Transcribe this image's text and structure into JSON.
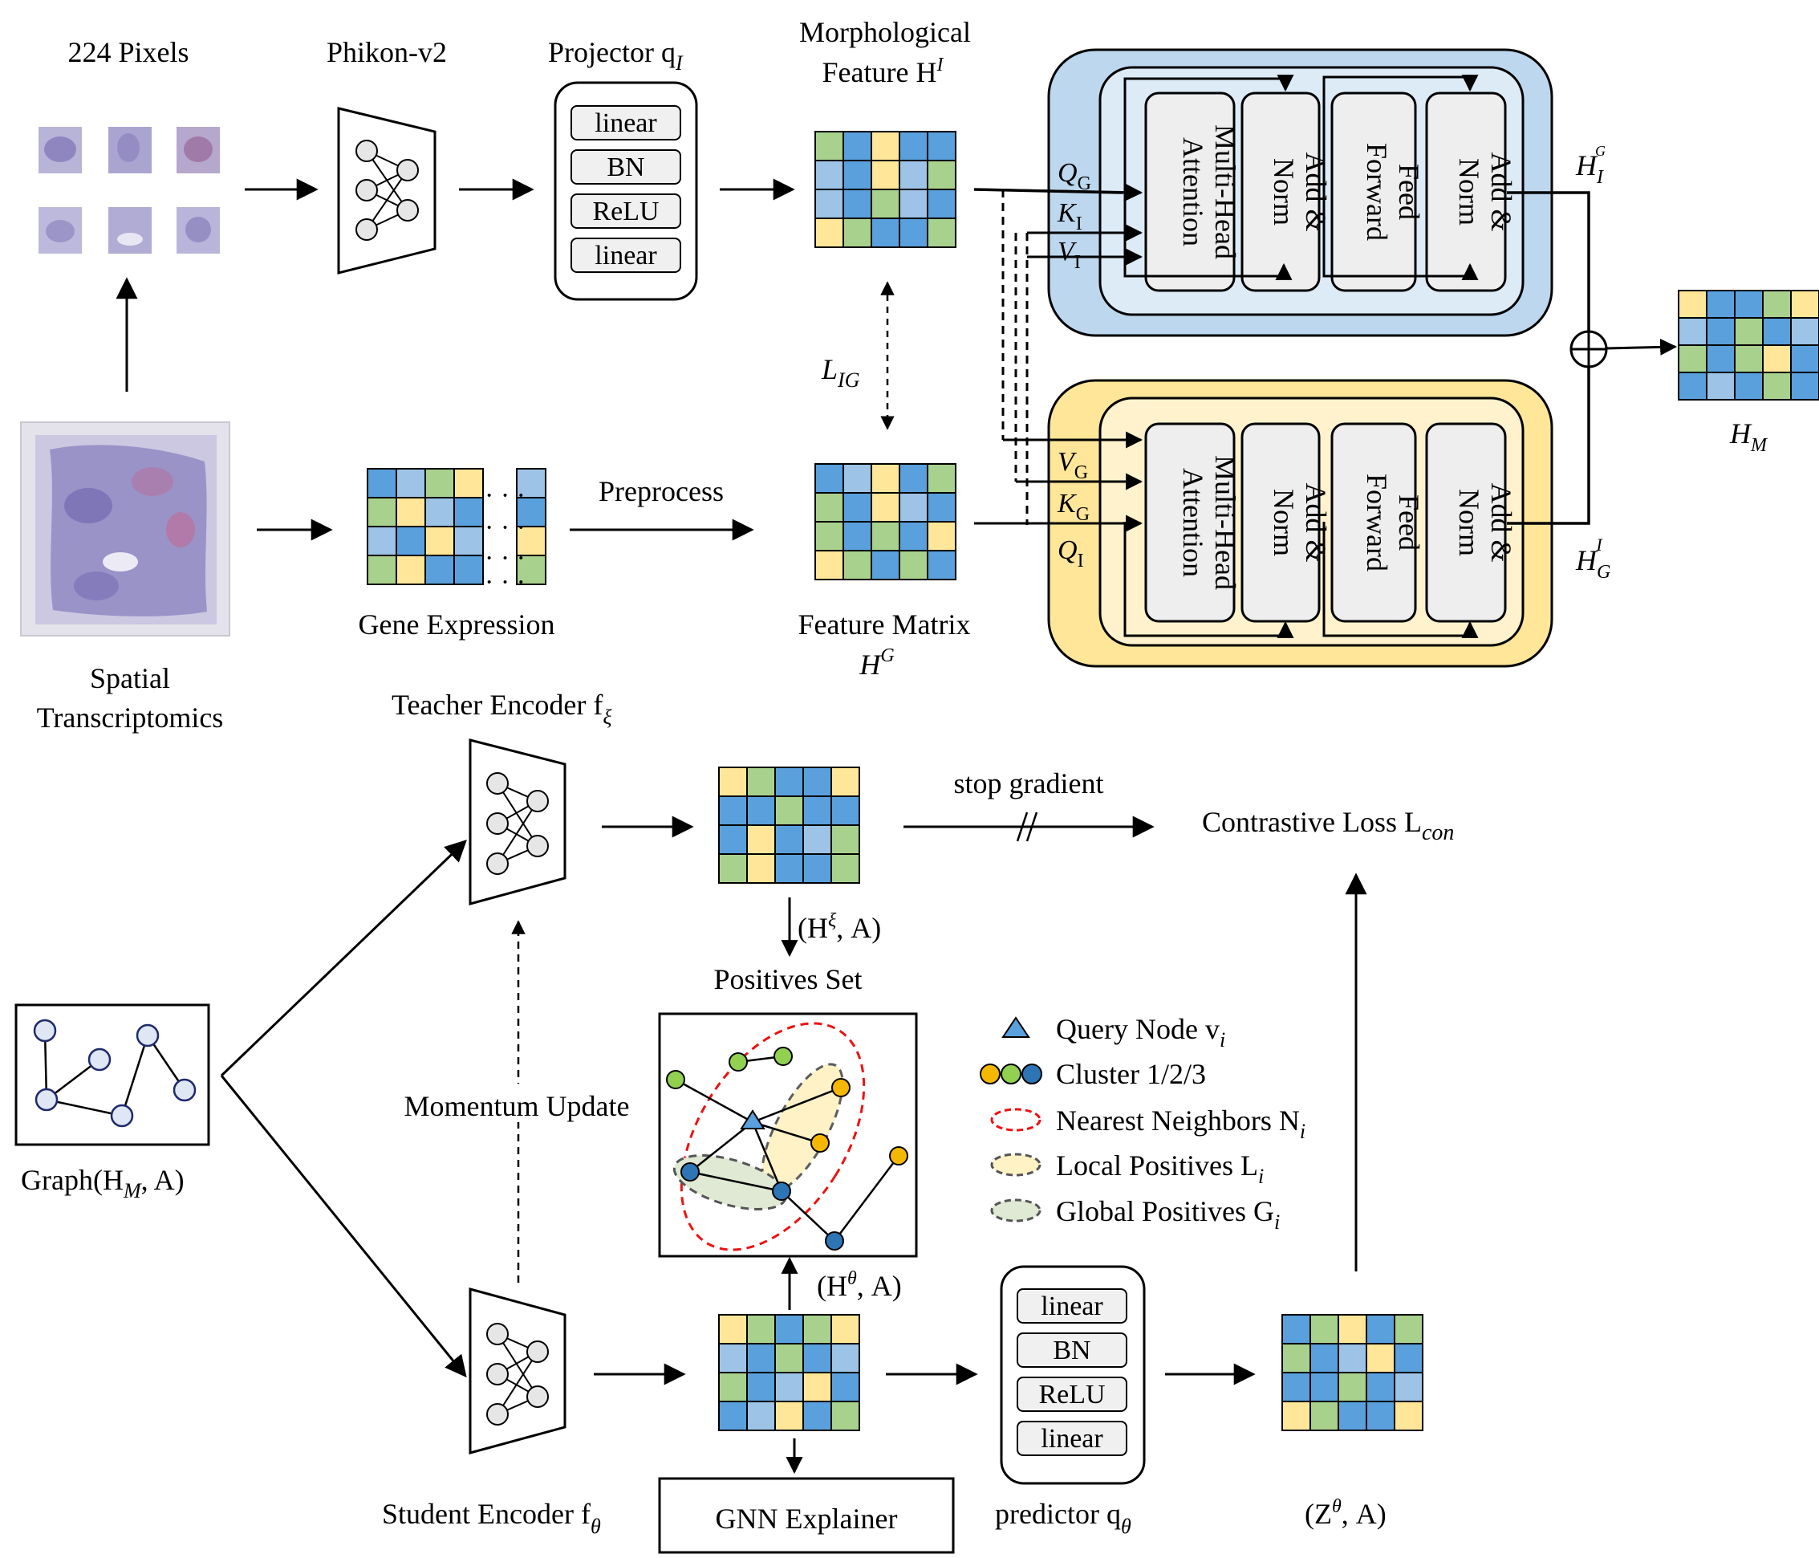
{
  "top": {
    "pixels_label": "224 Pixels",
    "phikon_label": "Phikon-v2",
    "projector_label": "Projector q",
    "projector_sub": "I",
    "projector_layers": [
      "linear",
      "BN",
      "ReLU",
      "linear"
    ],
    "morph_label_1": "Morphological",
    "morph_label_2": "Feature H",
    "morph_sup": "I",
    "lig_main": "L",
    "lig_sub": "IG",
    "st_label_1": "Spatial",
    "st_label_2": "Transcriptomics",
    "gene_label": "Gene Expression",
    "preprocess_label": "Preprocess",
    "feature_matrix_label": "Feature Matrix",
    "hg_main": "H",
    "hg_sup": "G"
  },
  "attention_blue": {
    "inputs": [
      {
        "main": "Q",
        "sub": "G"
      },
      {
        "main": "K",
        "sub": "I"
      },
      {
        "main": "V",
        "sub": "I"
      }
    ],
    "blocks": [
      "Multi-Head Attention",
      "Add & Norm",
      "Feed Forward",
      "Add & Norm"
    ],
    "output_main": "H",
    "output_sub": "I",
    "output_sup": "G",
    "fill": "#bdd7ee"
  },
  "attention_yellow": {
    "inputs": [
      {
        "main": "V",
        "sub": "G"
      },
      {
        "main": "K",
        "sub": "G"
      },
      {
        "main": "Q",
        "sub": "I"
      }
    ],
    "blocks": [
      "Multi-Head Attention",
      "Add & Norm",
      "Feed Forward",
      "Add & Norm"
    ],
    "output_main": "H",
    "output_sub": "G",
    "output_sup": "I",
    "fill": "#ffe699"
  },
  "fusion": {
    "symbol": "⊕",
    "hm_main": "H",
    "hm_sub": "M"
  },
  "bottom": {
    "teacher_label": "Teacher Encoder f",
    "teacher_sub": "ξ",
    "stop_gradient": "stop gradient",
    "contrastive_label": "Contrastive Loss L",
    "contrastive_sub": "con",
    "hxi_label": "(H",
    "hxi_sup": "ξ",
    "hxi_tail": ", A)",
    "positives_set": "Positives Set",
    "momentum_update": "Momentum Update",
    "graph_label": "Graph(H",
    "graph_sub": "M",
    "graph_tail": ", A)",
    "htheta_label": "(H",
    "htheta_sup": "θ",
    "htheta_tail": ", A)",
    "student_label": "Student Encoder f",
    "student_sub": "θ",
    "gnn_explainer": "GNN Explainer",
    "predictor_label": "predictor q",
    "predictor_sub": "θ",
    "predictor_layers": [
      "linear",
      "BN",
      "ReLU",
      "linear"
    ],
    "ztheta_label": "(Z",
    "ztheta_sup": "θ",
    "ztheta_tail": ", A)"
  },
  "legend": {
    "query_node": "Query Node v",
    "query_sub": "i",
    "clusters": "Cluster 1/2/3",
    "nearest": "Nearest Neighbors N",
    "nearest_sub": "i",
    "local": "Local Positives L",
    "local_sub": "i",
    "global": "Global Positives G",
    "global_sub": "i"
  },
  "colors": {
    "blue": "#5aa0dc",
    "light_blue": "#9dc3e6",
    "green": "#a9d18e",
    "yellow": "#ffe699",
    "cluster_yellow": "#f5b800",
    "cluster_green": "#92d050",
    "cluster_blue": "#2e75b6",
    "tissue": "#9a93c8"
  }
}
